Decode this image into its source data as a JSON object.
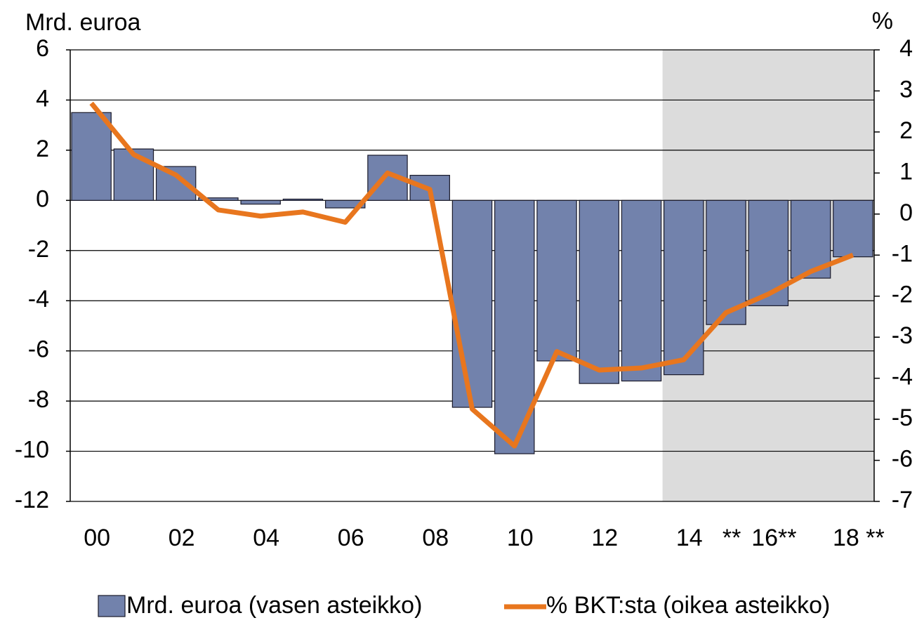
{
  "chart_data": {
    "type": "bar_line",
    "y_label": "Mrd. euroa",
    "y2_label": "%",
    "categories": [
      "00",
      null,
      "02",
      null,
      "04",
      null,
      "06",
      null,
      "08",
      null,
      "10",
      null,
      "12",
      null,
      "14",
      "**",
      "16**",
      null,
      "18 **"
    ],
    "series": [
      {
        "name": "Mrd. euroa (vasen asteikko)",
        "type": "bar",
        "color": "#7282ac",
        "values": [
          3.5,
          2.05,
          1.35,
          0.1,
          -0.15,
          0.05,
          -0.3,
          1.8,
          1.0,
          -8.25,
          -10.1,
          -6.4,
          -7.3,
          -7.2,
          -6.95,
          -4.95,
          -4.2,
          -3.1,
          -2.25
        ]
      },
      {
        "name": "% BKT:sta (oikea asteikko)",
        "type": "line",
        "axis": "y2",
        "color": "#e8761e",
        "values": [
          2.7,
          1.45,
          0.95,
          0.1,
          -0.05,
          0.05,
          -0.2,
          1.0,
          0.6,
          -4.75,
          -5.65,
          -3.35,
          -3.8,
          -3.75,
          -3.55,
          -2.4,
          -1.95,
          -1.4,
          -1.0
        ]
      }
    ],
    "ylim": [
      -12,
      6
    ],
    "yticks": [
      6,
      4,
      2,
      0,
      -2,
      -4,
      -6,
      -8,
      -10,
      -12
    ],
    "y2lim": [
      -7,
      4
    ],
    "y2ticks": [
      4,
      3,
      2,
      1,
      0,
      -1,
      -2,
      -3,
      -4,
      -5,
      -6,
      -7
    ],
    "grid": true
  }
}
